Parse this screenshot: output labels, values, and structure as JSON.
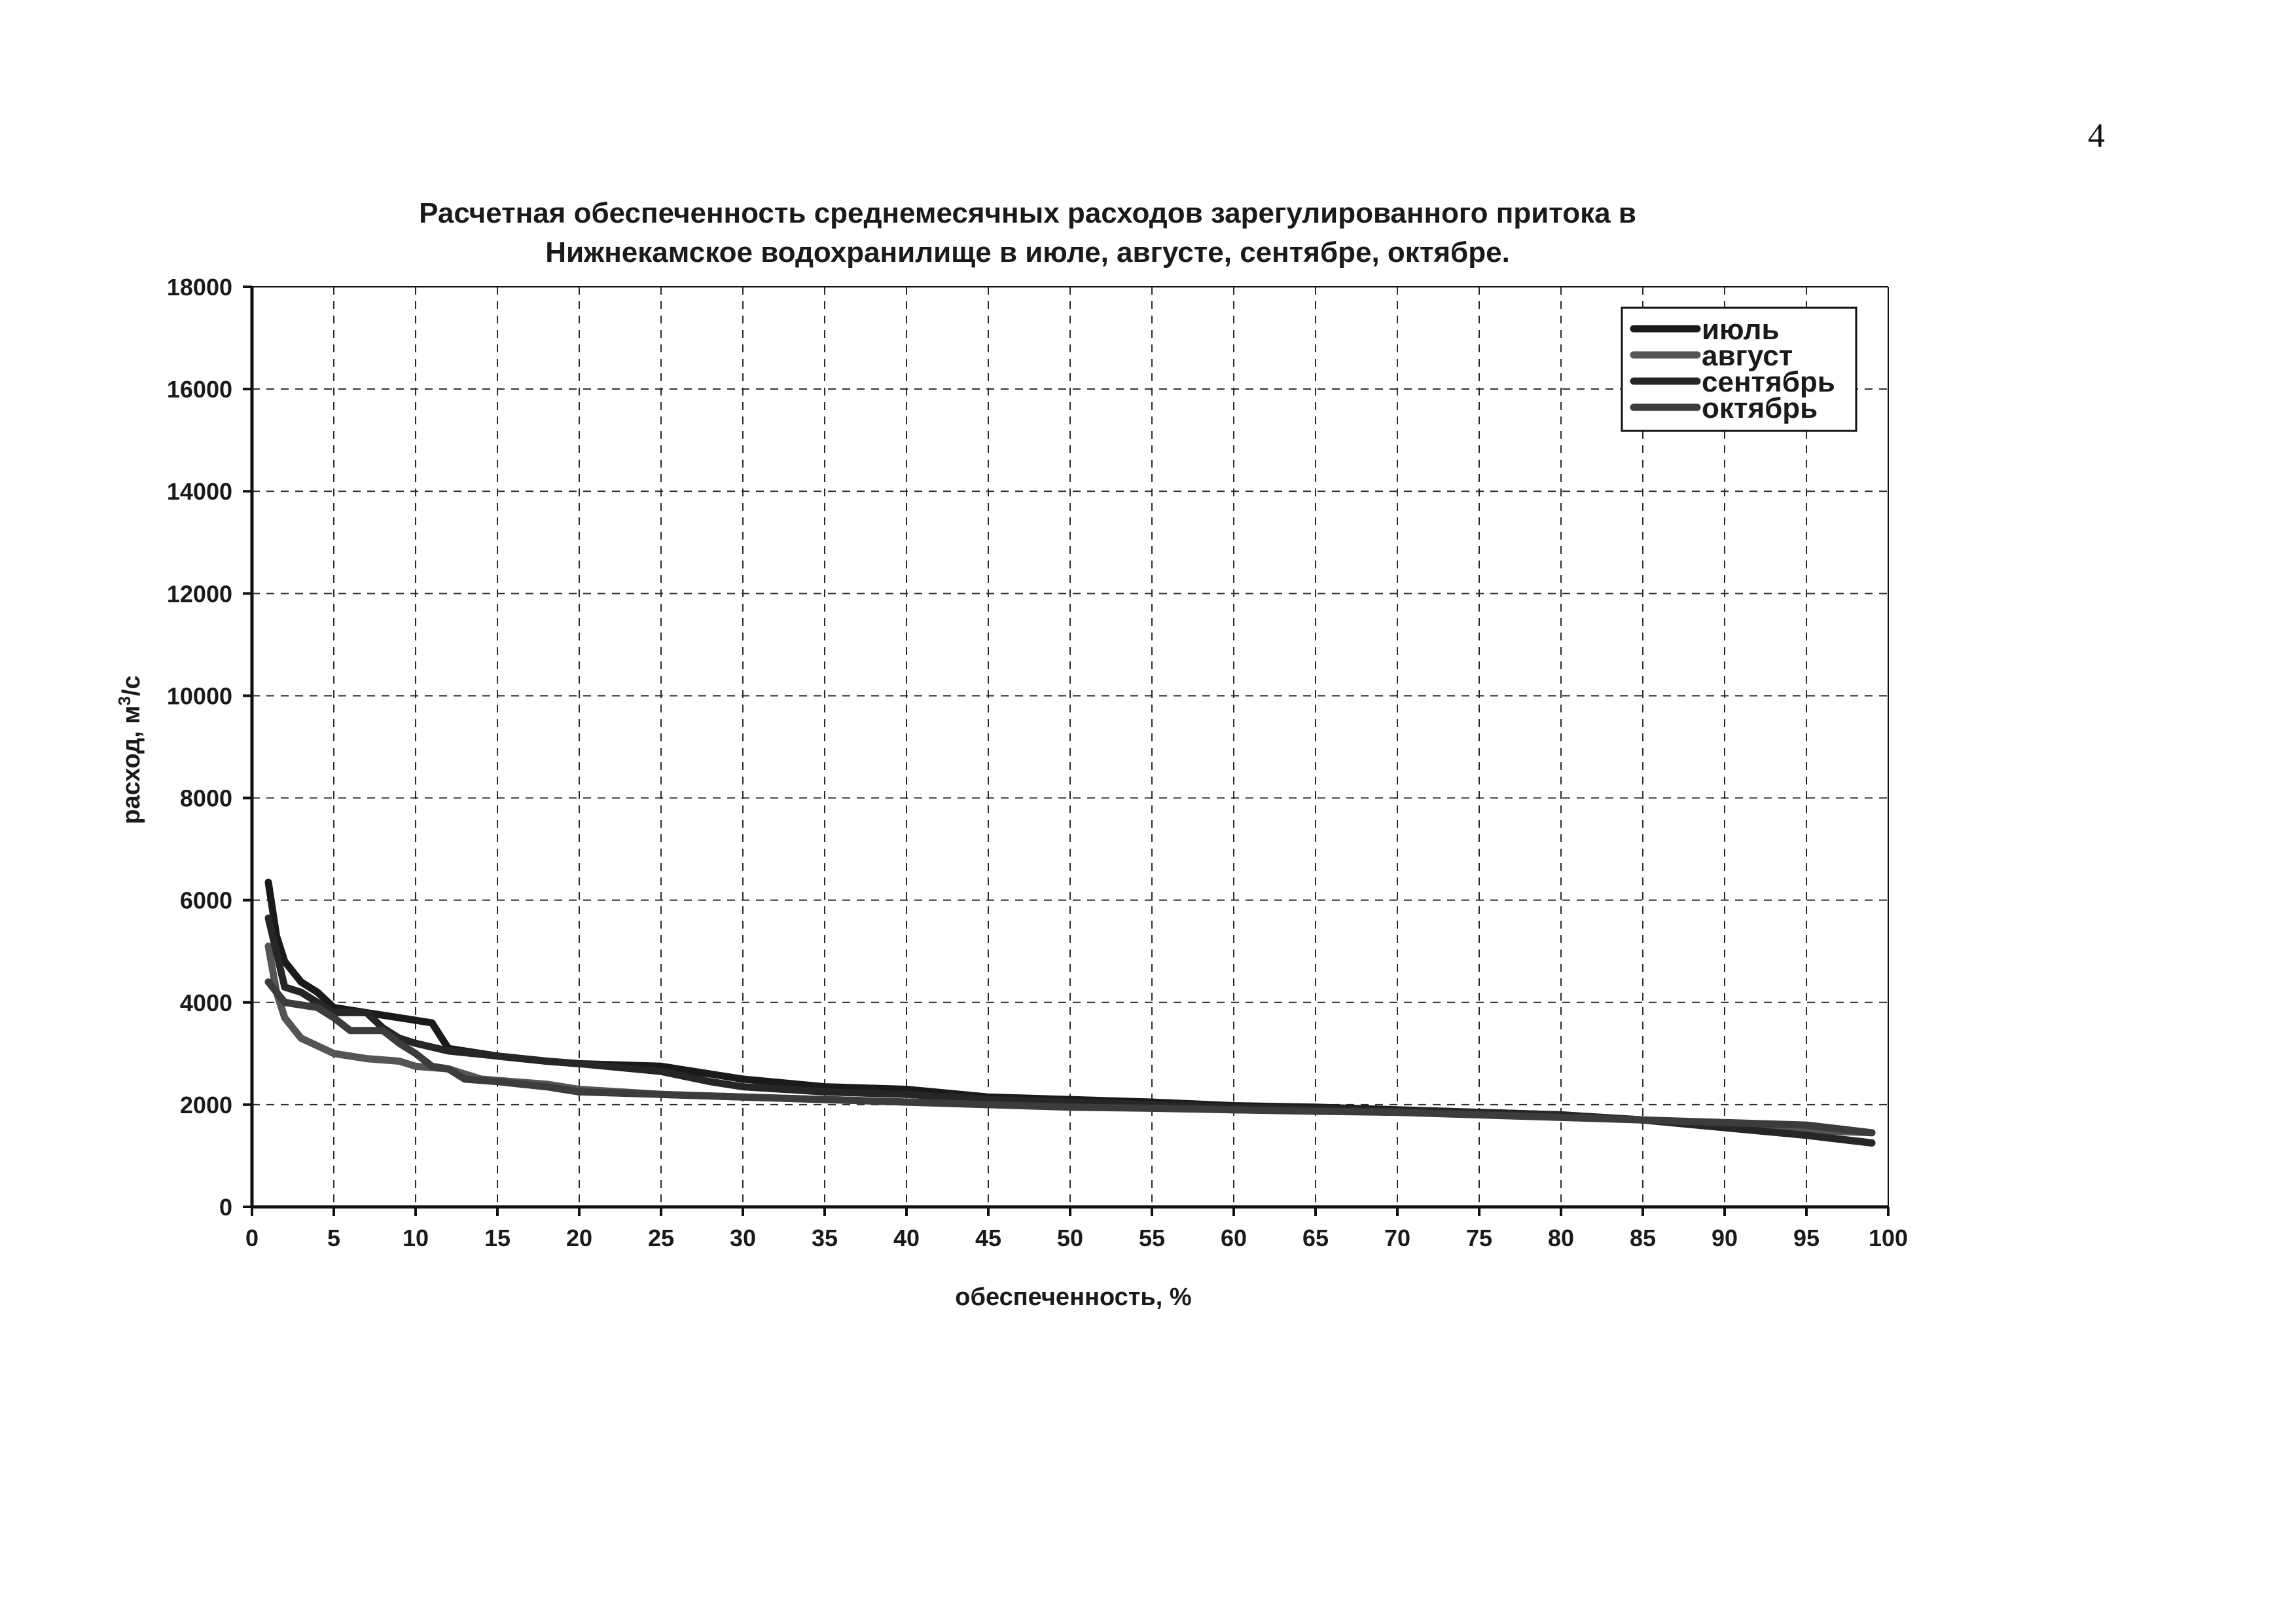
{
  "page_number": "4",
  "chart_data": {
    "type": "line",
    "title_lines": [
      "Расчетная обеспеченность среднемесячных расходов зарегулированного притока в",
      "Нижнекамское водохранилище в июле, августе, сентябре, октябре."
    ],
    "xlabel": "обеспеченность, %",
    "ylabel_prefix": "расход, м",
    "ylabel_sup": "3",
    "ylabel_suffix": "/с",
    "xlim": [
      0,
      100
    ],
    "ylim": [
      0,
      18000
    ],
    "x_ticks": [
      0,
      5,
      10,
      15,
      20,
      25,
      30,
      35,
      40,
      45,
      50,
      55,
      60,
      65,
      70,
      75,
      80,
      85,
      90,
      95,
      100
    ],
    "y_ticks": [
      0,
      2000,
      4000,
      6000,
      8000,
      10000,
      12000,
      14000,
      16000,
      18000
    ],
    "grid": true,
    "legend_position": "top-right",
    "series": [
      {
        "name": "июль",
        "color": "#1a1a1a",
        "x": [
          1,
          1.5,
          2,
          3,
          4,
          5,
          7,
          9,
          10,
          11,
          12,
          15,
          18,
          20,
          25,
          30,
          35,
          40,
          45,
          50,
          55,
          60,
          65,
          70,
          75,
          80,
          85,
          90,
          95,
          99
        ],
        "y": [
          6350,
          5300,
          4800,
          4400,
          4200,
          3900,
          3800,
          3700,
          3650,
          3600,
          3100,
          2950,
          2850,
          2800,
          2750,
          2500,
          2350,
          2300,
          2150,
          2100,
          2050,
          1980,
          1950,
          1900,
          1850,
          1800,
          1700,
          1550,
          1400,
          1250
        ]
      },
      {
        "name": "август",
        "color": "#555555",
        "x": [
          1,
          1.5,
          2,
          3,
          5,
          7,
          9,
          10,
          12,
          14,
          16,
          18,
          20,
          25,
          30,
          35,
          40,
          45,
          50,
          55,
          60,
          65,
          70,
          75,
          80,
          85,
          90,
          95,
          99
        ],
        "y": [
          5100,
          4200,
          3700,
          3300,
          3000,
          2900,
          2850,
          2750,
          2700,
          2500,
          2450,
          2400,
          2300,
          2200,
          2150,
          2100,
          2050,
          2000,
          1980,
          1950,
          1900,
          1880,
          1850,
          1820,
          1780,
          1700,
          1600,
          1500,
          1450
        ]
      },
      {
        "name": "сентябрь",
        "color": "#262626",
        "x": [
          1,
          2,
          3,
          4,
          5,
          7,
          8,
          9,
          10,
          12,
          15,
          18,
          20,
          25,
          28,
          30,
          35,
          40,
          45,
          50,
          55,
          60,
          65,
          70,
          75,
          80,
          85,
          90,
          95,
          99
        ],
        "y": [
          5650,
          4300,
          4200,
          4000,
          3800,
          3800,
          3500,
          3300,
          3200,
          3050,
          2950,
          2850,
          2800,
          2650,
          2450,
          2350,
          2250,
          2200,
          2100,
          2050,
          2000,
          1950,
          1920,
          1880,
          1850,
          1800,
          1700,
          1550,
          1400,
          1250
        ]
      },
      {
        "name": "октябрь",
        "color": "#3c3c3c",
        "x": [
          1,
          2,
          3,
          4,
          5,
          6,
          8,
          9,
          10,
          11,
          12,
          13,
          15,
          18,
          20,
          25,
          30,
          35,
          40,
          45,
          50,
          55,
          60,
          65,
          70,
          75,
          80,
          85,
          90,
          95,
          99
        ],
        "y": [
          4400,
          4000,
          3950,
          3900,
          3700,
          3450,
          3450,
          3200,
          3000,
          2750,
          2700,
          2500,
          2450,
          2350,
          2250,
          2200,
          2150,
          2100,
          2050,
          2000,
          1950,
          1930,
          1900,
          1870,
          1850,
          1800,
          1750,
          1700,
          1650,
          1600,
          1450
        ]
      }
    ]
  }
}
